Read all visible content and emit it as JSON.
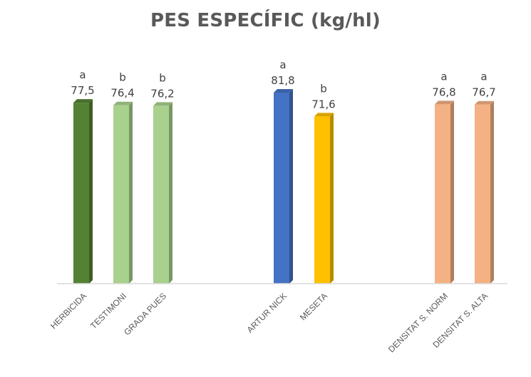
{
  "chart_data": {
    "type": "bar",
    "title": "PES ESPECÍFIC (kg/hl)",
    "xlabel": "",
    "ylabel": "",
    "grid": false,
    "legend": "none",
    "ylim": [
      0,
      81.8
    ],
    "categories": [
      "HERBICIDA",
      "TESTIMONI",
      "GRADA PUES",
      "ARTUR NICK",
      "MESETA",
      "DENSITAT S. NORM",
      "DENSITAT S. ALTA"
    ],
    "groups": [
      [
        "HERBICIDA",
        "TESTIMONI",
        "GRADA PUES"
      ],
      [
        "ARTUR NICK",
        "MESETA"
      ],
      [
        "DENSITAT S. NORM",
        "DENSITAT S. ALTA"
      ]
    ],
    "values": [
      77.5,
      76.4,
      76.2,
      81.8,
      71.6,
      76.8,
      76.7
    ],
    "value_labels": [
      "77,5",
      "76,4",
      "76,2",
      "81,8",
      "71,6",
      "76,8",
      "76,7"
    ],
    "significance_letters": [
      "a",
      "b",
      "b",
      "a",
      "b",
      "a",
      "a"
    ],
    "bar_colors": [
      "#548235",
      "#a9d18e",
      "#a9d18e",
      "#4472c4",
      "#ffc000",
      "#f4b183",
      "#f4b183"
    ]
  }
}
